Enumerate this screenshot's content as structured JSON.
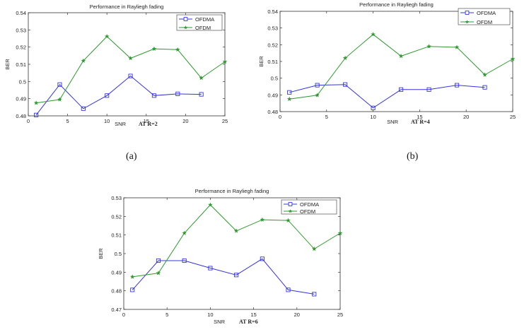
{
  "figure": {
    "labels": [
      "(a)",
      "(b)"
    ]
  },
  "chart_data": [
    {
      "type": "line",
      "title": "Performance in Rayliegh fading",
      "xlabel": "SNR",
      "annotation": "AT R=2",
      "ylabel": "BER",
      "xlim": [
        0,
        25
      ],
      "ylim": [
        0.48,
        0.54
      ],
      "xticks": [
        "0",
        "5",
        "10",
        "15",
        "20",
        "25"
      ],
      "yticks": [
        "0.48",
        "0.49",
        "0.5",
        "0.51",
        "0.52",
        "0.53",
        "0.54"
      ],
      "grid": false,
      "legend_position": "top-right",
      "series": [
        {
          "name": "OFDMA",
          "color": "#3434e0",
          "marker": "square",
          "x": [
            1,
            4,
            7,
            10,
            13,
            16,
            19,
            22
          ],
          "y": [
            0.4805,
            0.4982,
            0.4842,
            0.4918,
            0.5032,
            0.4918,
            0.4928,
            0.4925
          ]
        },
        {
          "name": "OFDM",
          "color": "#2e9a2e",
          "marker": "star",
          "x": [
            1,
            4,
            7,
            10,
            13,
            16,
            19,
            22,
            25
          ],
          "y": [
            0.4875,
            0.4895,
            0.512,
            0.5262,
            0.5135,
            0.519,
            0.5185,
            0.502,
            0.5115
          ]
        }
      ]
    },
    {
      "type": "line",
      "title": "Performance in Rayliegh fading",
      "xlabel": "SNR",
      "annotation": "AT R=4",
      "ylabel": "BER",
      "xlim": [
        0,
        25
      ],
      "ylim": [
        0.48,
        0.54
      ],
      "xticks": [
        "0",
        "5",
        "10",
        "15",
        "20",
        "25"
      ],
      "yticks": [
        "0.48",
        "0.49",
        "0.5",
        "0.51",
        "0.52",
        "0.53",
        "0.54"
      ],
      "grid": false,
      "legend_position": "top-right",
      "series": [
        {
          "name": "OFDMA",
          "color": "#3434e0",
          "marker": "square",
          "x": [
            1,
            4,
            7,
            10,
            13,
            16,
            19,
            22
          ],
          "y": [
            0.4915,
            0.4958,
            0.4962,
            0.4822,
            0.4932,
            0.4932,
            0.4958,
            0.4945
          ]
        },
        {
          "name": "OFDM",
          "color": "#2e9a2e",
          "marker": "star",
          "x": [
            1,
            4,
            7,
            10,
            13,
            16,
            19,
            22,
            25
          ],
          "y": [
            0.4875,
            0.4898,
            0.512,
            0.5262,
            0.5132,
            0.519,
            0.5185,
            0.502,
            0.5115
          ]
        }
      ]
    },
    {
      "type": "line",
      "title": "Performance in Rayliegh fading",
      "xlabel": "SNR",
      "annotation": "AT R=6",
      "ylabel": "BER",
      "xlim": [
        0,
        25
      ],
      "ylim": [
        0.47,
        0.53
      ],
      "xticks": [
        "0",
        "5",
        "10",
        "15",
        "20",
        "25"
      ],
      "yticks": [
        "0.47",
        "0.48",
        "0.49",
        "0.5",
        "0.51",
        "0.52",
        "0.53"
      ],
      "grid": false,
      "legend_position": "top-right",
      "series": [
        {
          "name": "OFDMA",
          "color": "#3434e0",
          "marker": "square",
          "x": [
            1,
            4,
            7,
            10,
            13,
            16,
            19,
            22
          ],
          "y": [
            0.4805,
            0.4962,
            0.4962,
            0.4922,
            0.4885,
            0.4972,
            0.4805,
            0.4782
          ]
        },
        {
          "name": "OFDM",
          "color": "#2e9a2e",
          "marker": "star",
          "x": [
            1,
            4,
            7,
            10,
            13,
            16,
            19,
            22,
            25
          ],
          "y": [
            0.4875,
            0.4895,
            0.511,
            0.5262,
            0.5122,
            0.5182,
            0.5178,
            0.5025,
            0.511
          ]
        }
      ]
    }
  ]
}
